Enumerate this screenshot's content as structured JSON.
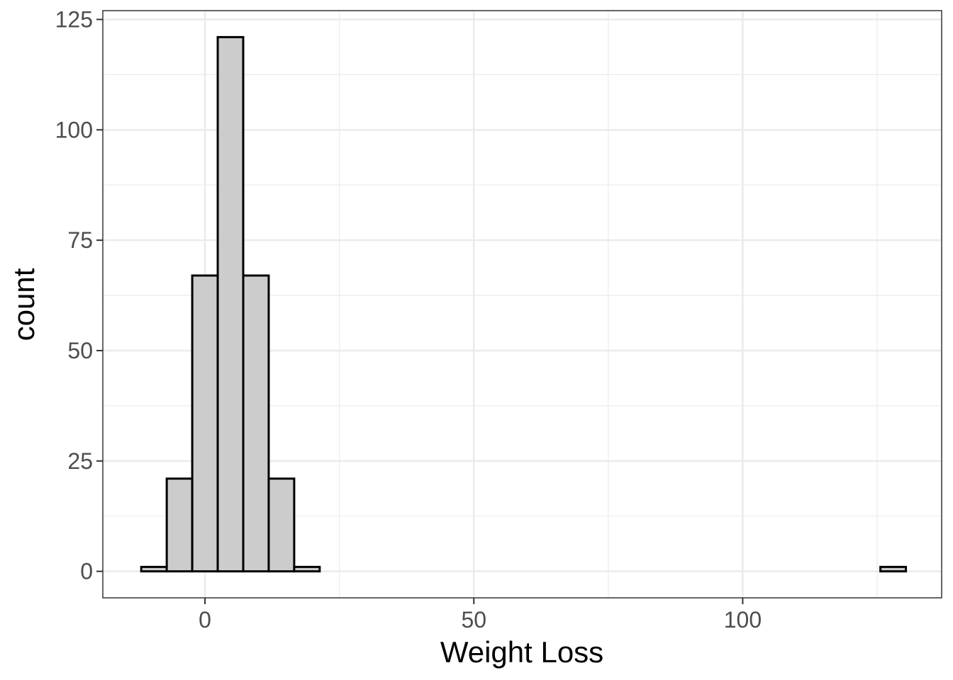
{
  "chart_data": {
    "type": "histogram",
    "xlabel": "Weight Loss",
    "ylabel": "count",
    "xlim": [
      -19,
      137
    ],
    "ylim": [
      -6,
      127
    ],
    "x_ticks": [
      0,
      50,
      100
    ],
    "x_minor_ticks": [
      25,
      75,
      125
    ],
    "y_ticks": [
      0,
      25,
      50,
      75,
      100,
      125
    ],
    "y_minor_ticks": [
      12.5,
      37.5,
      62.5,
      87.5,
      112.5
    ],
    "grid": true,
    "bin_width": 4.74,
    "bin_start": -11.85,
    "counts": [
      1,
      21,
      67,
      121,
      67,
      21,
      1,
      0,
      0,
      0,
      0,
      0,
      0,
      0,
      0,
      0,
      0,
      0,
      0,
      0,
      0,
      0,
      0,
      0,
      0,
      0,
      0,
      0,
      0,
      1
    ],
    "bar_fill": "#cccccc",
    "bar_stroke": "#000000",
    "grid_color": "#ebebeb"
  }
}
